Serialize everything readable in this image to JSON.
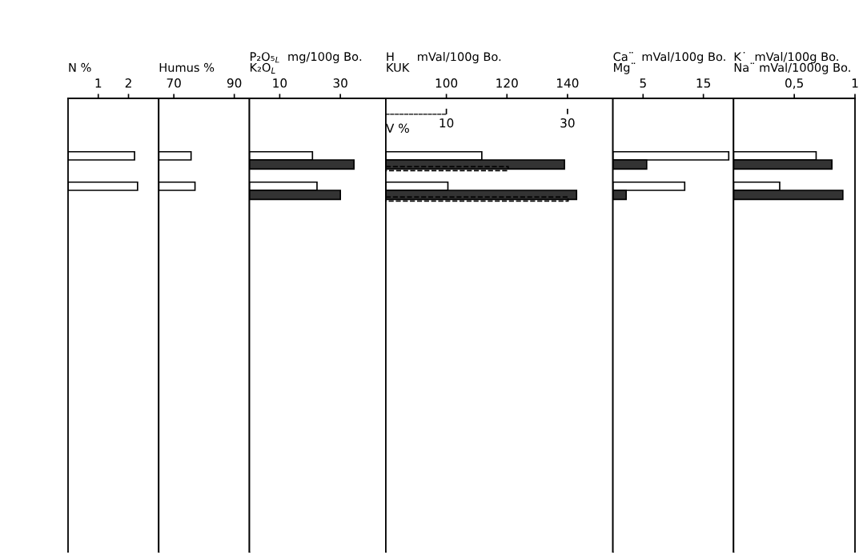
{
  "chart_data": [
    {
      "type": "bar",
      "orientation": "horizontal",
      "title": "N %",
      "categories": [
        null,
        null
      ],
      "xlim": [
        0,
        3
      ],
      "xticks": [
        1,
        2
      ],
      "tick_labels": "x",
      "series": [
        {
          "color": "#ffffff",
          "values": [
            2.2,
            2.3
          ]
        }
      ]
    },
    {
      "type": "bar",
      "orientation": "horizontal",
      "title": "Humus %",
      "categories": [
        null,
        null
      ],
      "xlim": [
        65,
        95
      ],
      "xticks": [
        70,
        90
      ],
      "tick_labels": "x",
      "series": [
        {
          "color": "#ffffff",
          "values": [
            75.7,
            77
          ]
        }
      ]
    },
    {
      "type": "bar",
      "orientation": "horizontal",
      "title": "P₂O₅$_{L}$  mg/100g Bo.\nK₂O$_{L}$",
      "categories": [
        null,
        null
      ],
      "xlim": [
        0,
        45
      ],
      "xticks": [
        10,
        30
      ],
      "tick_labels": "x",
      "series": [
        {
          "color": "#ffffff",
          "values": [
            20.8,
            22.3
          ]
        },
        {
          "color": "#333333",
          "values": [
            34.5,
            30
          ]
        }
      ]
    },
    {
      "type": "bar",
      "orientation": "horizontal",
      "title": "H      mVal/100g Bo.\nKUK",
      "categories": [
        null,
        null
      ],
      "xlim": [
        80,
        155
      ],
      "xticks": [
        100,
        120,
        140
      ],
      "x2lim": [
        0,
        37.5
      ],
      "x2ticks": [
        10,
        30
      ],
      "x2label": "V %",
      "tick_labels": "x",
      "series": [
        {
          "color": "#ffffff",
          "values": [
            111.7,
            100.5
          ]
        },
        {
          "color": "#333333",
          "values": [
            139,
            143
          ]
        },
        {
          "color": "#000000",
          "values": [
            20.2,
            30.1
          ],
          "axis": "x2",
          "line_style": "dashed"
        }
      ]
    },
    {
      "type": "bar",
      "orientation": "horizontal",
      "title": "Ca¨  mVal/100g Bo.\nMg¨",
      "categories": [
        null,
        null
      ],
      "xlim": [
        0,
        20
      ],
      "xticks": [
        5,
        15
      ],
      "tick_labels": "x",
      "series": [
        {
          "color": "#ffffff",
          "values": [
            19.2,
            11.9
          ]
        },
        {
          "color": "#333333",
          "values": [
            5.6,
            2.2
          ]
        }
      ]
    },
    {
      "type": "bar",
      "orientation": "horizontal",
      "title": "K˙  mVal/100g Bo.\nNa¨ mVal/1000g Bo.",
      "categories": [
        null,
        null
      ],
      "xlim": [
        0,
        1
      ],
      "xticks": [
        {
          "value": 0.5,
          "label": "0,5"
        },
        1
      ],
      "tick_labels": "x",
      "series": [
        {
          "color": "#ffffff",
          "values": [
            0.68,
            0.38
          ]
        },
        {
          "color": "#333333",
          "values": [
            0.81,
            0.9
          ]
        }
      ]
    }
  ]
}
